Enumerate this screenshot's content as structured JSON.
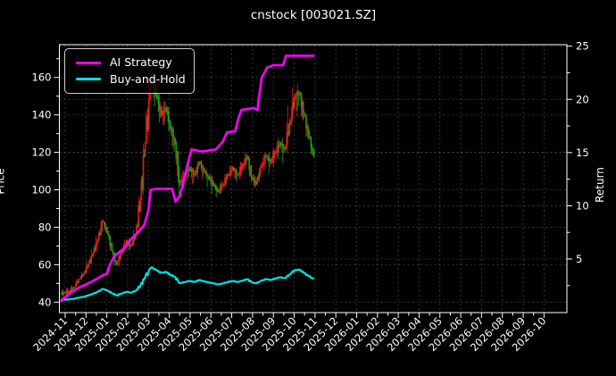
{
  "background": "#000000",
  "chart_data": {
    "type": "candlestick+line",
    "title": "cnstock [003021.SZ]",
    "grid": {
      "on": true,
      "style": "dashed",
      "color": "#777777"
    },
    "x_axis": {
      "tick_labels": [
        "2024-11",
        "2024-12",
        "2025-01",
        "2025-02",
        "2025-03",
        "2025-04",
        "2025-05",
        "2025-06",
        "2025-07",
        "2025-08",
        "2025-09",
        "2025-10",
        "2025-11",
        "2025-12",
        "2026-01",
        "2026-02",
        "2026-03",
        "2026-04",
        "2026-05",
        "2026-06",
        "2026-07",
        "2026-08",
        "2026-09",
        "2026-10"
      ],
      "label_rotation_deg": 45
    },
    "price_axis": {
      "label": "Price",
      "ticks": [
        40,
        60,
        80,
        100,
        120,
        140,
        160
      ],
      "range": [
        34.4,
        177.5
      ]
    },
    "return_axis": {
      "label": "Return",
      "ticks": [
        5,
        10,
        15,
        20,
        25
      ],
      "range": [
        0,
        25.2
      ]
    },
    "legend": {
      "position": "upper left",
      "entries": [
        {
          "label": "AI Strategy",
          "color": "#ff00ff"
        },
        {
          "label": "Buy-and-Hold",
          "color": "#00e0e0"
        }
      ]
    },
    "candle_colors": {
      "up": "#f01820",
      "down": "#18a018"
    },
    "price_weekly": [
      [
        "2024-10-24",
        44.5,
        46,
        43
      ],
      [
        "2024-10-31",
        45,
        47,
        43
      ],
      [
        "2024-11-07",
        46,
        48,
        44
      ],
      [
        "2024-11-14",
        48,
        50,
        45
      ],
      [
        "2024-11-21",
        52,
        54,
        47
      ],
      [
        "2024-11-28",
        55,
        57,
        51
      ],
      [
        "2024-12-05",
        60,
        63,
        54
      ],
      [
        "2024-12-12",
        66,
        70,
        59
      ],
      [
        "2024-12-19",
        73,
        78,
        65
      ],
      [
        "2024-12-26",
        83,
        88,
        72
      ],
      [
        "2025-01-02",
        78,
        84,
        74
      ],
      [
        "2025-01-09",
        68,
        76,
        64
      ],
      [
        "2025-01-16",
        60,
        65,
        57
      ],
      [
        "2025-01-23",
        67,
        70,
        58
      ],
      [
        "2025-01-30",
        73,
        76,
        64
      ],
      [
        "2025-02-06",
        70,
        75,
        66
      ],
      [
        "2025-02-13",
        76,
        80,
        68
      ],
      [
        "2025-02-20",
        95,
        100,
        74
      ],
      [
        "2025-02-27",
        125,
        132,
        92
      ],
      [
        "2025-03-06",
        160,
        172,
        122
      ],
      [
        "2025-03-13",
        150,
        168,
        140
      ],
      [
        "2025-03-20",
        140,
        155,
        132
      ],
      [
        "2025-03-27",
        144,
        150,
        130
      ],
      [
        "2025-04-03",
        134,
        147,
        126
      ],
      [
        "2025-04-10",
        126,
        136,
        114
      ],
      [
        "2025-04-17",
        104,
        120,
        88
      ],
      [
        "2025-04-24",
        108,
        113,
        96
      ],
      [
        "2025-05-01",
        112,
        116,
        102
      ],
      [
        "2025-05-08",
        108,
        114,
        100
      ],
      [
        "2025-05-15",
        115,
        118,
        104
      ],
      [
        "2025-05-22",
        110,
        117,
        103
      ],
      [
        "2025-05-29",
        106,
        112,
        100
      ],
      [
        "2025-06-05",
        103,
        111,
        97
      ],
      [
        "2025-06-12",
        99,
        105,
        95
      ],
      [
        "2025-06-19",
        103,
        107,
        96
      ],
      [
        "2025-06-26",
        108,
        112,
        99
      ],
      [
        "2025-07-03",
        112,
        116,
        104
      ],
      [
        "2025-07-10",
        108,
        114,
        101
      ],
      [
        "2025-07-17",
        113,
        118,
        103
      ],
      [
        "2025-07-24",
        118,
        122,
        108
      ],
      [
        "2025-07-31",
        106,
        117,
        100
      ],
      [
        "2025-08-07",
        103,
        110,
        99
      ],
      [
        "2025-08-14",
        112,
        116,
        101
      ],
      [
        "2025-08-21",
        118,
        123,
        107
      ],
      [
        "2025-08-28",
        115,
        121,
        108
      ],
      [
        "2025-09-04",
        120,
        125,
        110
      ],
      [
        "2025-09-11",
        125,
        130,
        114
      ],
      [
        "2025-09-18",
        122,
        129,
        113
      ],
      [
        "2025-09-25",
        135,
        150,
        118
      ],
      [
        "2025-10-02",
        150,
        158,
        132
      ],
      [
        "2025-10-09",
        152,
        157,
        136
      ],
      [
        "2025-10-16",
        140,
        154,
        131
      ],
      [
        "2025-10-23",
        128,
        142,
        121
      ],
      [
        "2025-10-30",
        118,
        130,
        112
      ]
    ],
    "series": [
      {
        "name": "AI Strategy",
        "axis": "return",
        "color": "#ff00ff",
        "points": [
          [
            "2024-10-24",
            1.0
          ],
          [
            "2024-11-01",
            1.4
          ],
          [
            "2024-11-08",
            1.8
          ],
          [
            "2024-11-15",
            2.1
          ],
          [
            "2024-11-22",
            2.35
          ],
          [
            "2024-12-01",
            2.6
          ],
          [
            "2024-12-10",
            2.9
          ],
          [
            "2024-12-18",
            3.2
          ],
          [
            "2024-12-26",
            3.5
          ],
          [
            "2025-01-01",
            3.6
          ],
          [
            "2025-01-05",
            4.4
          ],
          [
            "2025-01-12",
            5.3
          ],
          [
            "2025-01-20",
            5.7
          ],
          [
            "2025-01-28",
            6.1
          ],
          [
            "2025-02-06",
            6.9
          ],
          [
            "2025-02-13",
            7.3
          ],
          [
            "2025-02-20",
            7.8
          ],
          [
            "2025-02-25",
            8.2
          ],
          [
            "2025-03-01",
            9.6
          ],
          [
            "2025-03-04",
            11.5
          ],
          [
            "2025-03-12",
            11.6
          ],
          [
            "2025-04-05",
            11.6
          ],
          [
            "2025-04-10",
            10.4
          ],
          [
            "2025-04-16",
            10.9
          ],
          [
            "2025-04-22",
            12.3
          ],
          [
            "2025-04-27",
            13.8
          ],
          [
            "2025-05-03",
            15.3
          ],
          [
            "2025-05-18",
            15.1
          ],
          [
            "2025-06-08",
            15.3
          ],
          [
            "2025-06-18",
            16.0
          ],
          [
            "2025-06-24",
            16.9
          ],
          [
            "2025-07-06",
            17.0
          ],
          [
            "2025-07-11",
            18.3
          ],
          [
            "2025-07-15",
            19.0
          ],
          [
            "2025-08-03",
            19.2
          ],
          [
            "2025-08-08",
            19.0
          ],
          [
            "2025-08-14",
            22.0
          ],
          [
            "2025-08-22",
            23.0
          ],
          [
            "2025-09-01",
            23.2
          ],
          [
            "2025-09-15",
            23.2
          ],
          [
            "2025-09-19",
            24.1
          ],
          [
            "2025-10-30",
            24.1
          ]
        ]
      },
      {
        "name": "Buy-and-Hold",
        "axis": "return",
        "color": "#00e0e0",
        "derived_from": "price close / 38",
        "points": [
          [
            "2024-10-24",
            1.17
          ],
          [
            "2024-11-28",
            1.45
          ],
          [
            "2024-12-26",
            2.18
          ],
          [
            "2025-01-16",
            1.58
          ],
          [
            "2025-02-13",
            2.0
          ],
          [
            "2025-03-06",
            4.21
          ],
          [
            "2025-03-20",
            3.68
          ],
          [
            "2025-04-17",
            2.74
          ],
          [
            "2025-05-15",
            3.03
          ],
          [
            "2025-06-12",
            2.61
          ],
          [
            "2025-07-24",
            3.11
          ],
          [
            "2025-08-07",
            2.71
          ],
          [
            "2025-09-11",
            3.29
          ],
          [
            "2025-10-02",
            3.95
          ],
          [
            "2025-10-30",
            3.11
          ]
        ]
      }
    ]
  }
}
